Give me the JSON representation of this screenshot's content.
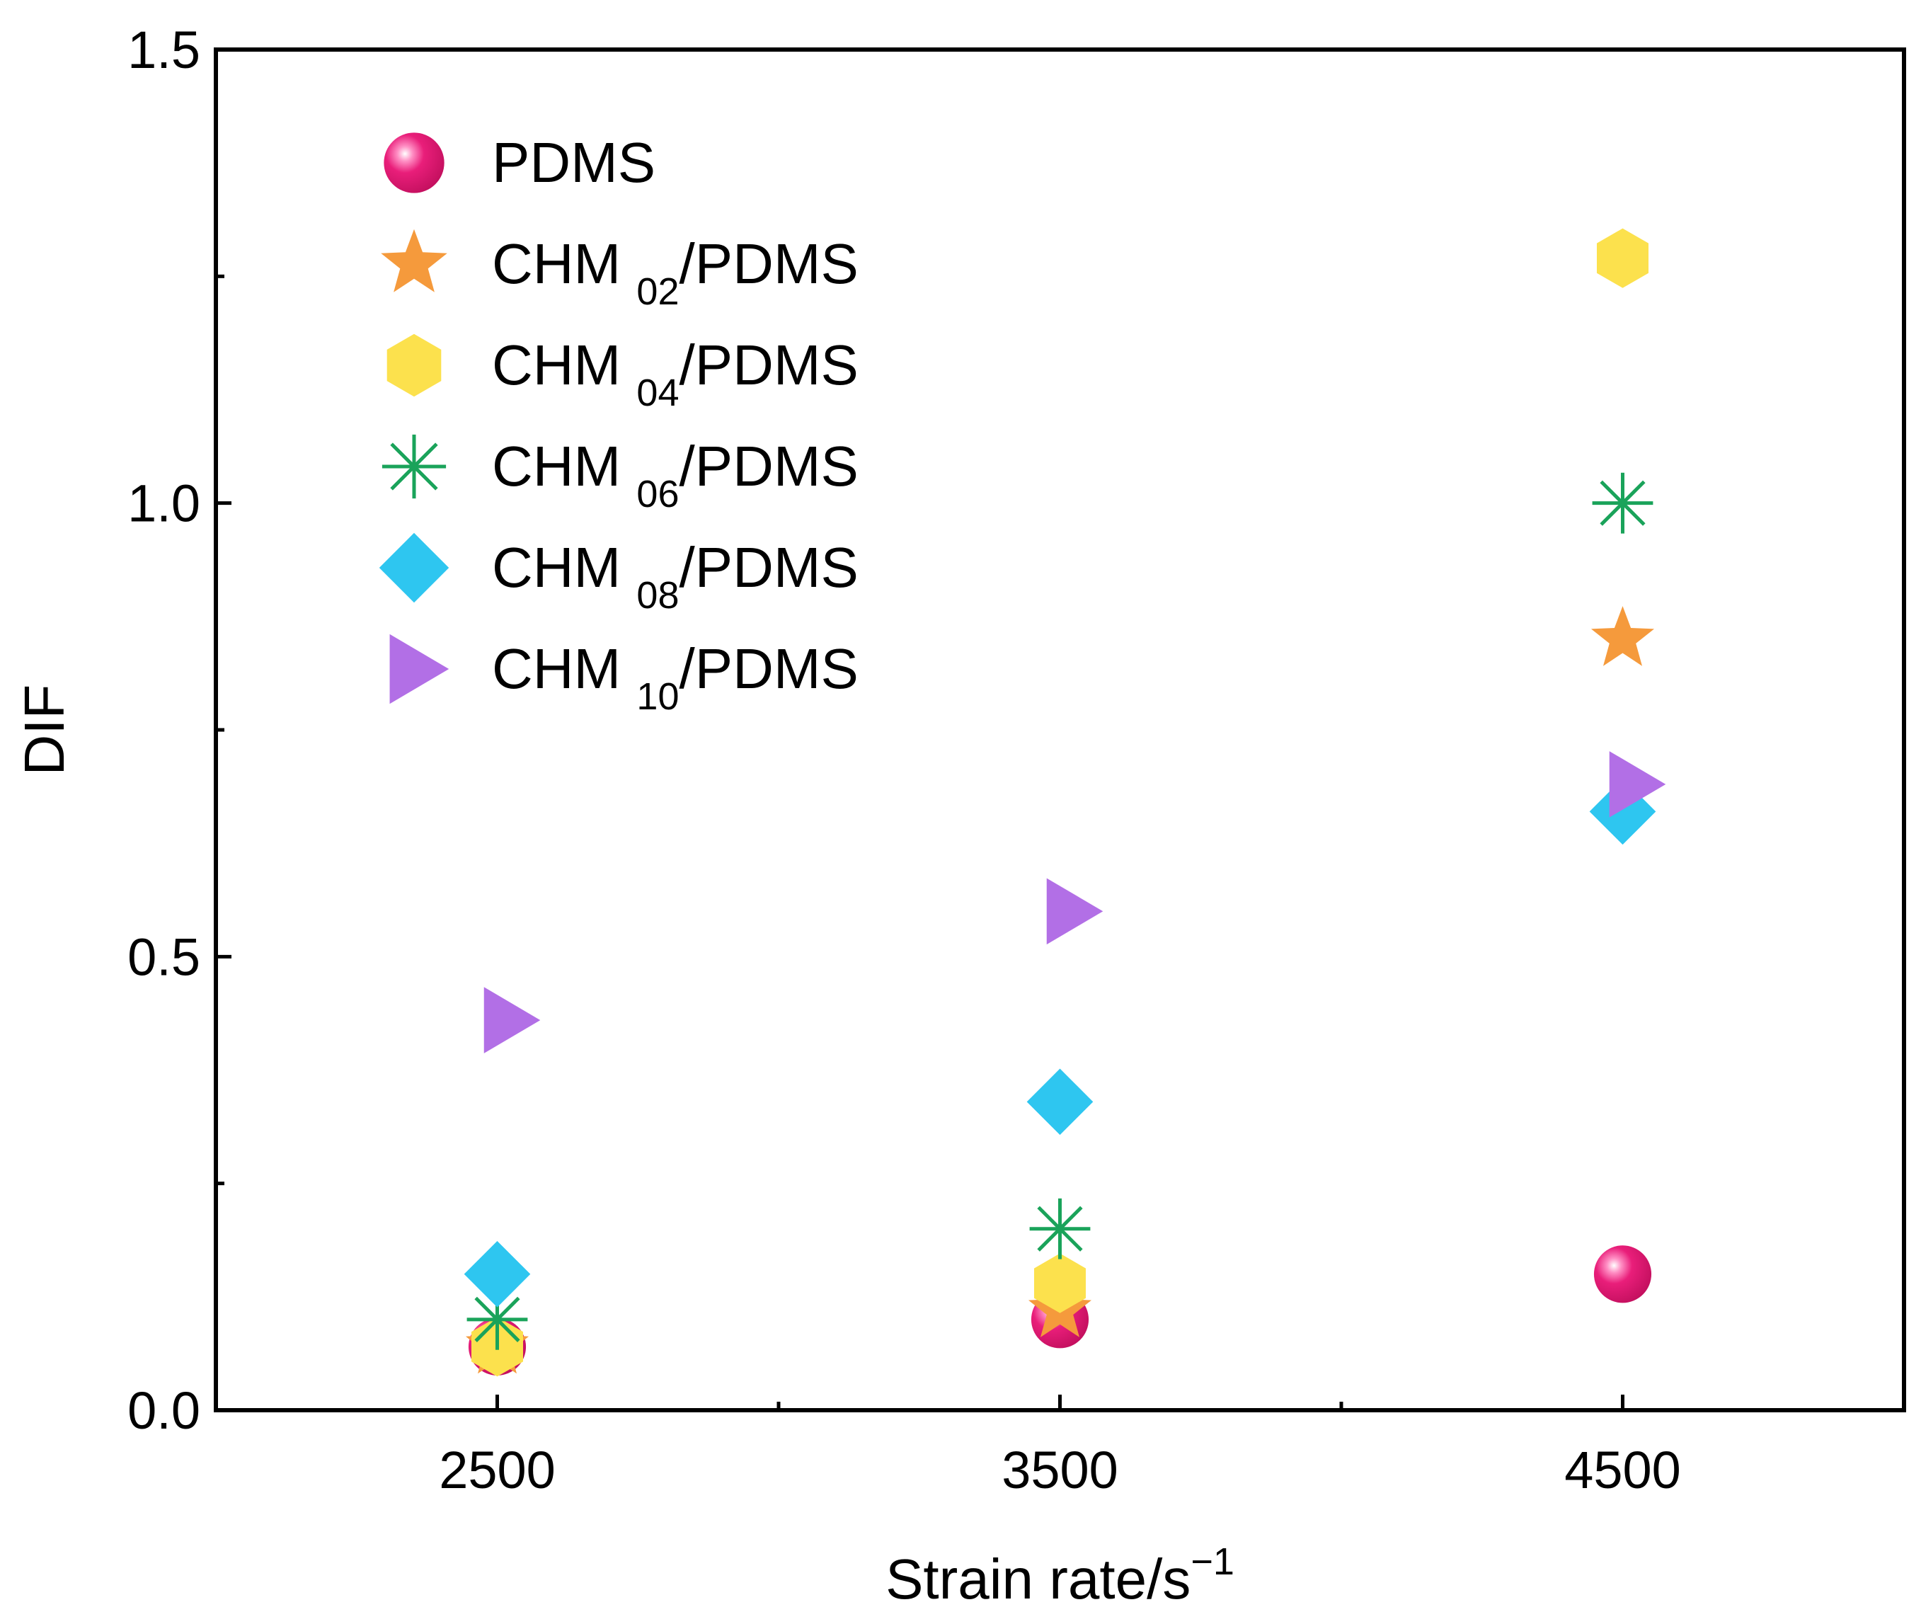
{
  "chart_data": {
    "type": "scatter",
    "title": "",
    "xlabel": "Strain rate/s",
    "xlabel_superscript": "−1",
    "ylabel": "DIF",
    "x_categories": [
      "2500",
      "3500",
      "4500"
    ],
    "x_range": [
      2000,
      5000
    ],
    "x_ticks_labeled": [
      2500,
      3500,
      4500
    ],
    "x_ticks_minor": [
      3000,
      4000
    ],
    "y_range": [
      0.0,
      1.5
    ],
    "y_ticks_labeled": [
      0.0,
      0.5,
      1.0,
      1.5
    ],
    "y_tick_labels": [
      "0.0",
      "0.5",
      "1.0",
      "1.5"
    ],
    "y_ticks_minor": [
      0.25,
      0.75,
      1.25
    ],
    "grid": false,
    "legend_position": "top-left",
    "series": [
      {
        "name": "PDMS",
        "label_main": "PDMS",
        "label_sub": "",
        "label_suffix": "",
        "marker": "sphere",
        "color": "#e91e7a",
        "x": [
          2500,
          3500,
          4500
        ],
        "y": [
          0.07,
          0.1,
          0.15
        ]
      },
      {
        "name": "CHM 02/PDMS",
        "label_main": "CHM ",
        "label_sub": "02",
        "label_suffix": "/PDMS",
        "marker": "star",
        "color": "#f59a3c",
        "x": [
          2500,
          3500,
          4500
        ],
        "y": [
          0.07,
          0.11,
          0.85
        ]
      },
      {
        "name": "CHM 04/PDMS",
        "label_main": "CHM ",
        "label_sub": "04",
        "label_suffix": "/PDMS",
        "marker": "hexagon",
        "color": "#fce14d",
        "x": [
          2500,
          3500,
          4500
        ],
        "y": [
          0.07,
          0.14,
          1.27
        ]
      },
      {
        "name": "CHM 06/PDMS",
        "label_main": "CHM ",
        "label_sub": "06",
        "label_suffix": "/PDMS",
        "marker": "asterisk",
        "color": "#1aa35a",
        "x": [
          2500,
          3500,
          4500
        ],
        "y": [
          0.1,
          0.2,
          1.0
        ]
      },
      {
        "name": "CHM 08/PDMS",
        "label_main": "CHM ",
        "label_sub": "08",
        "label_suffix": "/PDMS",
        "marker": "diamond",
        "color": "#2ec6f0",
        "x": [
          2500,
          3500,
          4500
        ],
        "y": [
          0.15,
          0.34,
          0.66
        ]
      },
      {
        "name": "CHM 10/PDMS",
        "label_main": "CHM ",
        "label_sub": "10",
        "label_suffix": "/PDMS",
        "marker": "triangle-right",
        "color": "#b26fe6",
        "x": [
          2500,
          3500,
          4500
        ],
        "y": [
          0.43,
          0.55,
          0.69
        ]
      }
    ]
  }
}
